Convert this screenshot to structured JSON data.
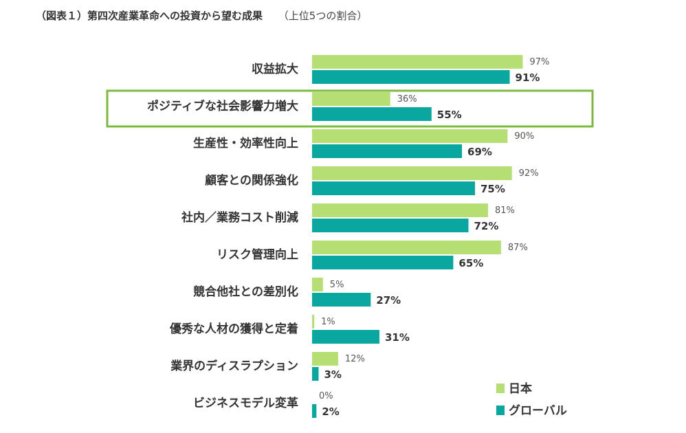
{
  "header": {
    "title": "（図表１）第四次産業革命への投資から望む成果",
    "subtitle": "（上位5つの割合）"
  },
  "colors": {
    "japan": "#b5df72",
    "global": "#0aa7a1",
    "highlight": "#7cba3c"
  },
  "chart_data": {
    "type": "bar",
    "orientation": "horizontal",
    "categories": [
      "収益拡大",
      "ポジティブな社会影響力増大",
      "生産性・効率性向上",
      "顧客との関係強化",
      "社内／業務コスト削減",
      "リスク管理向上",
      "競合他社との差別化",
      "優秀な人材の獲得と定着",
      "業界のディスラプション",
      "ビジネスモデル変革"
    ],
    "series": [
      {
        "name": "日本",
        "values": [
          97,
          36,
          90,
          92,
          81,
          87,
          5,
          1,
          12,
          0
        ],
        "labels": [
          "97%",
          "36%",
          "90%",
          "92%",
          "81%",
          "87%",
          "5%",
          "1%",
          "12%",
          "0%"
        ]
      },
      {
        "name": "グローバル",
        "values": [
          91,
          55,
          69,
          75,
          72,
          65,
          27,
          31,
          3,
          2
        ],
        "labels": [
          "91%",
          "55%",
          "69%",
          "75%",
          "72%",
          "65%",
          "27%",
          "31%",
          "3%",
          "2%"
        ]
      }
    ],
    "highlighted_category": "ポジティブな社会影響力増大",
    "xlim": [
      0,
      100
    ],
    "grid": false,
    "legend": "bottom-right",
    "xlabel": "",
    "ylabel": ""
  }
}
